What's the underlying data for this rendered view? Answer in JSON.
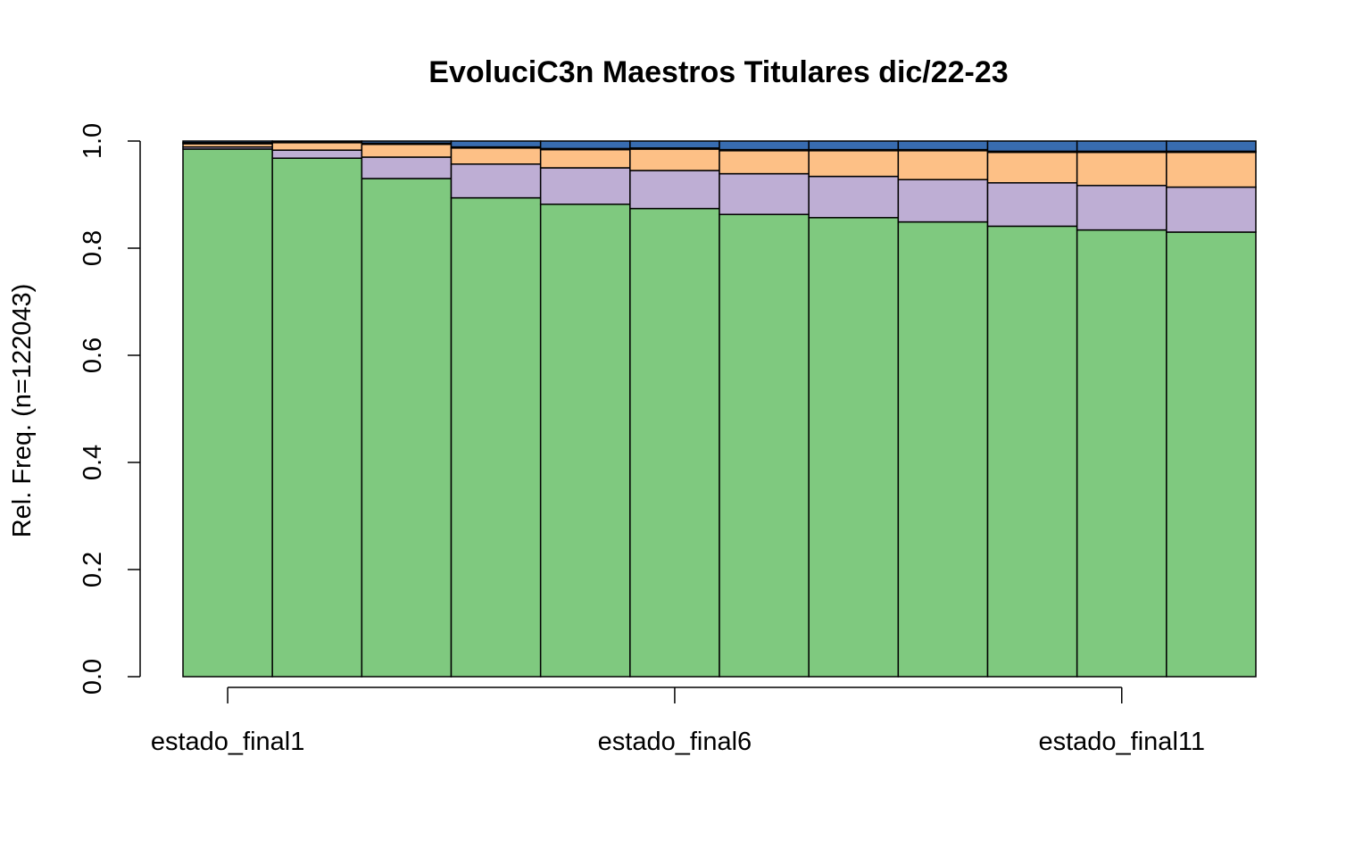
{
  "chart_data": {
    "type": "bar",
    "stacked": true,
    "normalized": true,
    "title": "EvoluciC3n Maestros Titulares dic/22-23",
    "xlabel": "",
    "ylabel": "Rel. Freq. (n=122043)",
    "ylim": [
      0,
      1
    ],
    "yticks": [
      "0.0",
      "0.2",
      "0.4",
      "0.6",
      "0.8",
      "1.0"
    ],
    "xtick_labels": [
      "estado_final1",
      "estado_final6",
      "estado_final11"
    ],
    "xtick_positions": [
      1,
      6,
      11
    ],
    "categories": [
      "estado_final1",
      "estado_final2",
      "estado_final3",
      "estado_final4",
      "estado_final5",
      "estado_final6",
      "estado_final7",
      "estado_final8",
      "estado_final9",
      "estado_final10",
      "estado_final11",
      "estado_final12"
    ],
    "series_colors": [
      "#7fc97f",
      "#beaed4",
      "#fdc086",
      "#ffff99",
      "#386cb0"
    ],
    "series": [
      {
        "values": [
          0.985,
          0.968,
          0.93,
          0.894,
          0.882,
          0.874,
          0.863,
          0.857,
          0.849,
          0.841,
          0.834,
          0.83
        ]
      },
      {
        "values": [
          0.004,
          0.015,
          0.04,
          0.063,
          0.068,
          0.071,
          0.076,
          0.077,
          0.079,
          0.081,
          0.083,
          0.084
        ]
      },
      {
        "values": [
          0.006,
          0.014,
          0.024,
          0.03,
          0.034,
          0.04,
          0.043,
          0.048,
          0.054,
          0.057,
          0.062,
          0.065
        ]
      },
      {
        "values": [
          0.002,
          0.001,
          0.002,
          0.002,
          0.002,
          0.002,
          0.002,
          0.002,
          0.002,
          0.002,
          0.002,
          0.002
        ]
      },
      {
        "values": [
          0.003,
          0.002,
          0.004,
          0.011,
          0.014,
          0.013,
          0.016,
          0.016,
          0.016,
          0.019,
          0.019,
          0.019
        ]
      }
    ]
  }
}
